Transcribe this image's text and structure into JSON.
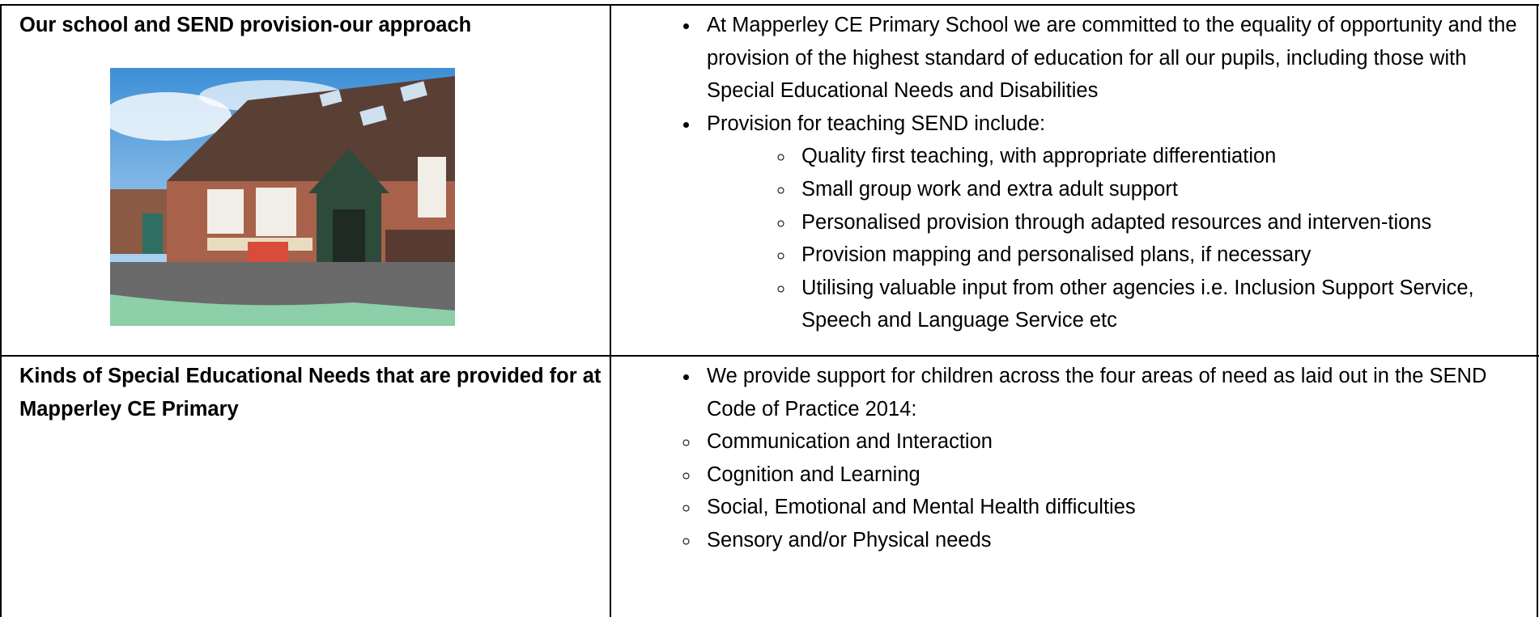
{
  "table": {
    "rows": [
      {
        "heading": "Our school and SEND provision-our approach",
        "items": [
          {
            "text": "At Mapperley CE Primary School we are committed to the equality of opportunity and the provision of the highest standard of education for all our pupils, including those with Special Educational Needs and Disabilities",
            "subitems": []
          },
          {
            "text": "Provision for teaching SEND include:",
            "subitems": [
              "Quality first teaching, with appropriate differentiation",
              "Small group work and extra adult support",
              "Personalised provision through adapted resources and interven-tions",
              "Provision mapping and personalised plans, if necessary",
              "Utilising valuable input from other agencies i.e. Inclusion Support Service, Speech and Language Service etc"
            ]
          }
        ],
        "circles": []
      },
      {
        "heading": "Kinds of Special Educational Needs that are provided for at Mapperley CE Primary",
        "items": [
          {
            "text": "We provide support for children across the four areas of need as laid out in the SEND Code of Practice 2014:",
            "subitems": []
          }
        ],
        "circles": [
          "Communication and Interaction",
          "Cognition and Learning",
          "Social, Emotional and Mental Health difficulties",
          "Sensory and/or Physical needs"
        ]
      }
    ]
  }
}
